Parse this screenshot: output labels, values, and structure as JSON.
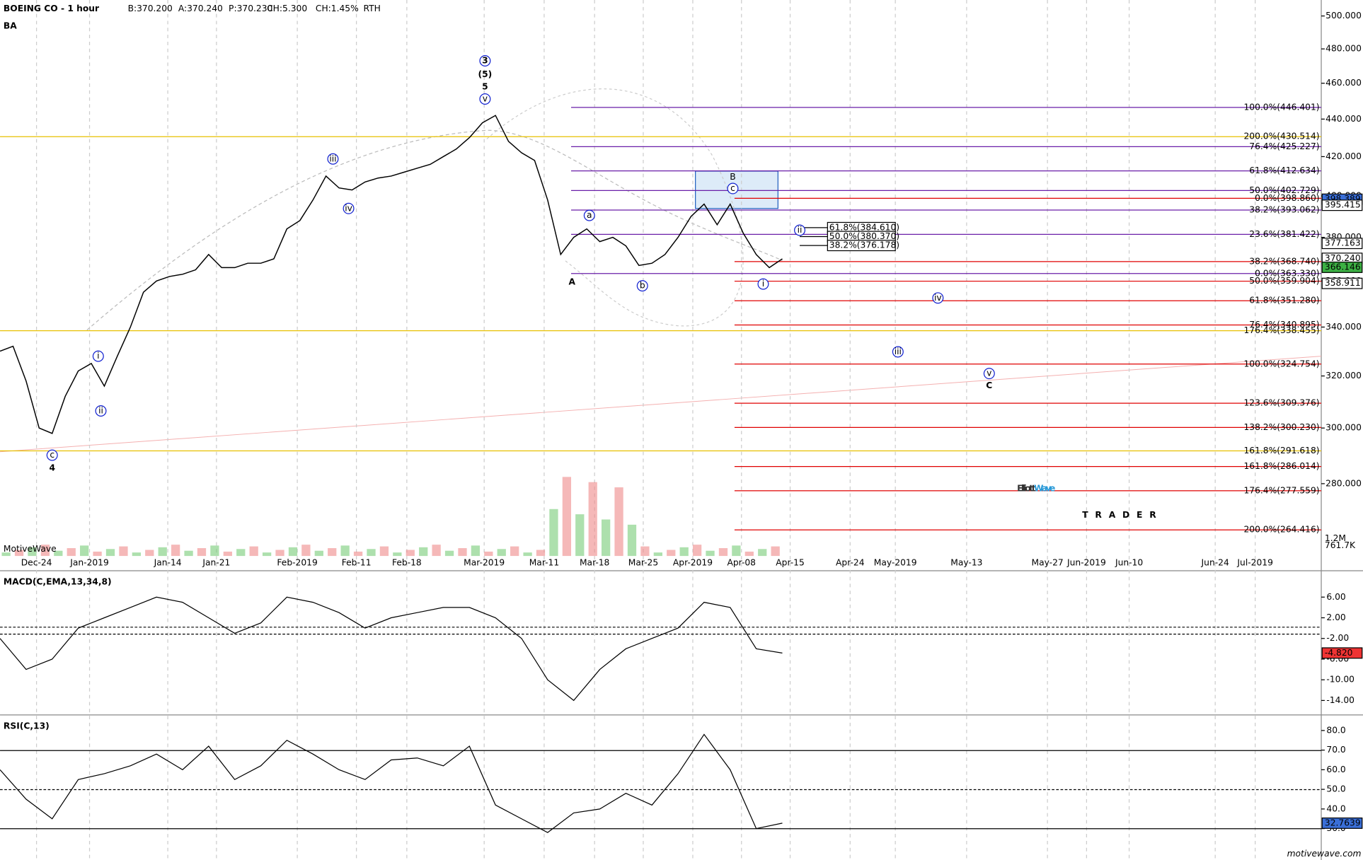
{
  "chart_data": [
    {
      "type": "line",
      "title": "BOEING CO - 1 hour",
      "symbol": "BA",
      "quote": [
        "B:370.200",
        "A:370.240",
        "P:370.230",
        "CH:5.300",
        "CH:1.45%",
        "RTH"
      ],
      "source": "MotiveWave",
      "date_labels": [
        "Dec-24",
        "Jan-2019",
        "Jan-14",
        "Jan-21",
        "Feb-2019",
        "Feb-11",
        "Feb-18",
        "Mar-2019",
        "Mar-11",
        "Mar-18",
        "Mar-25",
        "Apr-2019",
        "Apr-08",
        "Apr-15",
        "Apr-24",
        "May-2019",
        "May-13",
        "May-27",
        "Jun-2019",
        "Jun-10",
        "Jun-24",
        "Jul-2019"
      ],
      "values": [
        330,
        332,
        318,
        300,
        298,
        312,
        322,
        325,
        316,
        328,
        340,
        355,
        360,
        362,
        363,
        365,
        372,
        366,
        366,
        368,
        368,
        370,
        384,
        388,
        398,
        410,
        404,
        403,
        407,
        409,
        410,
        412,
        414,
        416,
        420,
        424,
        430,
        438,
        442,
        428,
        422,
        418,
        398,
        372,
        380,
        384,
        378,
        380,
        376,
        367,
        368,
        372,
        380,
        390,
        396,
        386,
        396,
        382,
        372,
        366,
        370
      ],
      "color": "#000000",
      "log_scale": true,
      "ylim": [
        256,
        510
      ],
      "yticks": [
        {
          "value": 280,
          "label": "280.000"
        },
        {
          "value": 300,
          "label": "300.000"
        },
        {
          "value": 320,
          "label": "320.000"
        },
        {
          "value": 340,
          "label": "340.000"
        },
        {
          "value": 360,
          "label": "360.000"
        },
        {
          "value": 380,
          "label": "380.000"
        },
        {
          "value": 400,
          "label": "400.000"
        },
        {
          "value": 420,
          "label": "420.000"
        },
        {
          "value": 440,
          "label": "440.000"
        },
        {
          "value": 460,
          "label": "460.000"
        },
        {
          "value": 480,
          "label": "480.000"
        },
        {
          "value": 500,
          "label": "500.000"
        }
      ],
      "purple_levels": [
        {
          "value": 446.401,
          "label": "100.0%(446.401)"
        },
        {
          "value": 425.227,
          "label": "76.4%(425.227)"
        },
        {
          "value": 412.634,
          "label": "61.8%(412.634)"
        },
        {
          "value": 402.729,
          "label": "50.0%(402.729)"
        },
        {
          "value": 393.062,
          "label": "38.2%(393.062)"
        },
        {
          "value": 381.422,
          "label": "23.6%(381.422)"
        },
        {
          "value": 363.33,
          "label": "0.0%(363.330)"
        }
      ],
      "red_levels": [
        {
          "value": 398.86,
          "label": "0.0%(398.860)"
        },
        {
          "value": 368.74,
          "label": "38.2%(368.740)"
        },
        {
          "value": 359.904,
          "label": "50.0%(359.904)"
        },
        {
          "value": 351.28,
          "label": "61.8%(351.280)"
        },
        {
          "value": 340.895,
          "label": "76.4%(340.895)"
        },
        {
          "value": 324.754,
          "label": "100.0%(324.754)"
        },
        {
          "value": 309.376,
          "label": "123.6%(309.376)"
        },
        {
          "value": 300.23,
          "label": "138.2%(300.230)"
        },
        {
          "value": 286.014,
          "label": "161.8%(286.014)"
        },
        {
          "value": 277.559,
          "label": "176.4%(277.559)"
        },
        {
          "value": 264.416,
          "label": "200.0%(264.416)"
        }
      ],
      "yellow_levels": [
        {
          "value": 430.514,
          "label": "200.0%(430.514)"
        },
        {
          "value": 338.455,
          "label": "176.4%(338.455)"
        },
        {
          "value": 291.618,
          "label": "161.8%(291.618)"
        }
      ],
      "box_levels": [
        {
          "value": 384.61,
          "label": "61.8%(384.610)"
        },
        {
          "value": 380.37,
          "label": "50.0%(380.370)"
        },
        {
          "value": 376.178,
          "label": "38.2%(376.178)"
        }
      ],
      "price_tags": [
        398.389,
        395.415,
        377.163,
        {
          "value": 370.24,
          "label": "370.240"
        },
        366.146,
        358.911
      ],
      "volume_labels": [
        "1.2M",
        "761.7K"
      ],
      "wave_labels": [
        "3",
        "(5)",
        "5",
        "v",
        "iii",
        "iv",
        "i",
        "ii",
        "c",
        "4",
        "a",
        "A",
        "b",
        "B",
        "c",
        "ii",
        "i",
        "iv",
        "iii",
        "v",
        "C"
      ],
      "logo": {
        "part1": "Elliott",
        "part2": "Wave",
        "tagline": "TRADER"
      }
    },
    {
      "type": "line",
      "title": "MACD(C,EMA,13,34,8)",
      "values": [
        -2,
        -8,
        -6,
        0,
        2,
        4,
        6,
        5,
        2,
        -1,
        1,
        6,
        5,
        3,
        0,
        2,
        3,
        4,
        4,
        2,
        -2,
        -10,
        -14,
        -8,
        -4,
        -2,
        0,
        5,
        4,
        -4,
        -4.82
      ],
      "color": "#000000",
      "ylim": [
        -16.8,
        10.6
      ],
      "yticks": [
        {
          "value": -14,
          "label": "-14.00"
        },
        {
          "value": -10,
          "label": "-10.00"
        },
        {
          "value": -6,
          "label": "-6.00"
        },
        {
          "value": -2,
          "label": "-2.00"
        },
        {
          "value": 2,
          "label": "2.00"
        },
        {
          "value": 6,
          "label": "6.00"
        }
      ],
      "tag": {
        "value": -4.82,
        "label": "-4.820"
      }
    },
    {
      "type": "line",
      "title": "RSI(C,13)",
      "values": [
        60,
        45,
        35,
        55,
        58,
        62,
        68,
        60,
        72,
        55,
        62,
        75,
        68,
        60,
        55,
        65,
        66,
        62,
        72,
        42,
        35,
        28,
        38,
        40,
        48,
        42,
        58,
        78,
        60,
        30,
        32.8
      ],
      "color": "#000000",
      "ylim": [
        14,
        86.6
      ],
      "yticks": [
        {
          "value": 30,
          "label": "30.0"
        },
        {
          "value": 40,
          "label": "40.0"
        },
        {
          "value": 50,
          "label": "50.0"
        },
        {
          "value": 60,
          "label": "60.0"
        },
        {
          "value": 70,
          "label": "70.0"
        },
        {
          "value": 80,
          "label": "80.0"
        }
      ],
      "tag": 32.7639,
      "footer": "motivewave.com"
    }
  ]
}
